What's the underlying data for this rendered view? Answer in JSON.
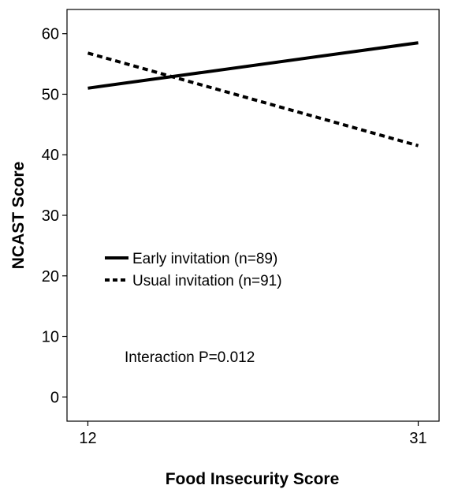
{
  "chart_data": {
    "type": "line",
    "title": "",
    "xlabel": "Food Insecurity Score",
    "ylabel": "NCAST Score",
    "x": [
      12,
      31
    ],
    "xticks": [
      12,
      31
    ],
    "yticks": [
      0,
      10,
      20,
      30,
      40,
      50,
      60
    ],
    "xlim": [
      10.8,
      32.2
    ],
    "ylim": [
      -4,
      64
    ],
    "grid": false,
    "legend_position": "middle-left",
    "series": [
      {
        "name": "Early invitation (n=89)",
        "style": "solid",
        "values": [
          51.0,
          58.5
        ],
        "color": "#000000"
      },
      {
        "name": "Usual invitation (n=91)",
        "style": "dashed",
        "values": [
          56.8,
          41.5
        ],
        "color": "#000000"
      }
    ],
    "annotations": [
      {
        "text": "Interaction P=0.012"
      }
    ]
  }
}
